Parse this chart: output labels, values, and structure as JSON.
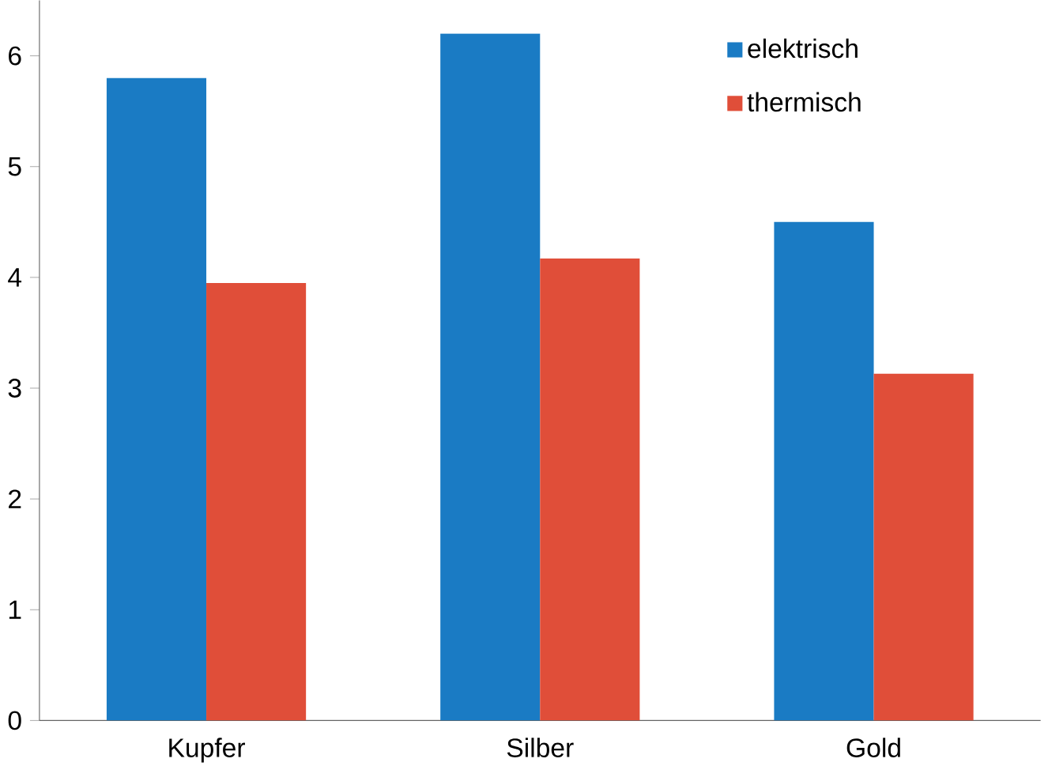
{
  "chart_data": {
    "type": "bar",
    "categories": [
      "Kupfer",
      "Silber",
      "Gold"
    ],
    "series": [
      {
        "name": "elektrisch",
        "color": "#1a7bc4",
        "values": [
          5.8,
          6.2,
          4.5
        ]
      },
      {
        "name": "thermisch",
        "color": "#e04e39",
        "values": [
          3.95,
          4.17,
          3.13
        ]
      }
    ],
    "ylim": [
      0,
      6.5
    ],
    "yticks": [
      0,
      1,
      2,
      3,
      4,
      5,
      6
    ],
    "legend": "top right"
  }
}
